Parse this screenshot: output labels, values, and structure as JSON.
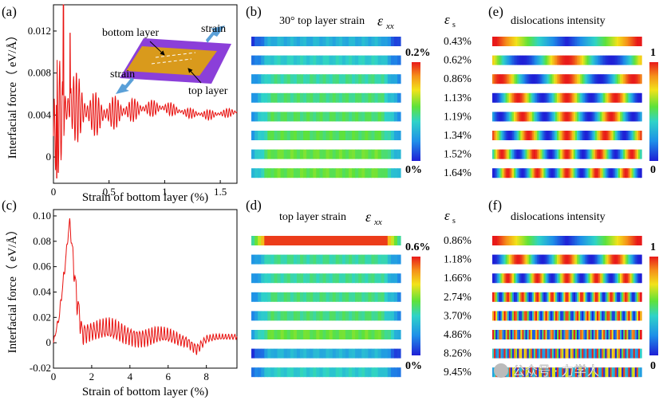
{
  "colors": {
    "curve": "#e8110f",
    "substrate": "#8b3fd9",
    "top_layer": "#d99a1c",
    "arrow": "#5aa0d8"
  },
  "panels": {
    "a": {
      "label": "(a)"
    },
    "b": {
      "label": "(b)"
    },
    "c": {
      "label": "(c)"
    },
    "d": {
      "label": "(d)"
    },
    "e": {
      "label": "(e)"
    },
    "f": {
      "label": "(f)"
    }
  },
  "inset": {
    "bottom_layer": "bottom layer",
    "top_layer": "top layer",
    "strain_right": "strain",
    "strain_left": "strain"
  },
  "chart_data": [
    {
      "id": "a",
      "type": "line",
      "color": "#e8110f",
      "xlabel": "Strain of bottom layer (%)",
      "ylabel": "Interfacial force（ eV/Å）",
      "xlim": [
        0,
        1.65
      ],
      "ylim": [
        -0.0025,
        0.0145
      ],
      "xticks": [
        0,
        0.5,
        1,
        1.5
      ],
      "xtick_labels": [
        "0",
        "0.5",
        "1",
        "1.5"
      ],
      "yticks": [
        0,
        0.004,
        0.008,
        0.012
      ],
      "ytick_labels": [
        "0",
        "0.004",
        "0.008",
        "0.012"
      ],
      "envelope": {
        "x": [
          0,
          0.03,
          0.08,
          0.15,
          0.25,
          0.4,
          0.6,
          0.8,
          1.0,
          1.2,
          1.4,
          1.65
        ],
        "mean": [
          0.002,
          0.004,
          0.004,
          0.005,
          0.0045,
          0.004,
          0.0043,
          0.0046,
          0.0047,
          0.0042,
          0.004,
          0.0043
        ],
        "amplitude": [
          0.004,
          0.006,
          0.005,
          0.004,
          0.003,
          0.002,
          0.0015,
          0.0009,
          0.0007,
          0.0005,
          0.0005,
          0.0004
        ]
      },
      "spikes": [
        {
          "x": 0.09,
          "y": 0.0145
        },
        {
          "x": 0.15,
          "y": 0.0118
        },
        {
          "x": 0.03,
          "y": -0.002
        }
      ]
    },
    {
      "id": "c",
      "type": "line",
      "color": "#e8110f",
      "xlabel": "Strain of bottom layer (%)",
      "ylabel": "Interfacial force（ eV/Å）",
      "xlim": [
        0,
        9.6
      ],
      "ylim": [
        -0.02,
        0.105
      ],
      "xticks": [
        0,
        2,
        4,
        6,
        8
      ],
      "xtick_labels": [
        "0",
        "2",
        "4",
        "6",
        "8"
      ],
      "yticks": [
        -0.02,
        0,
        0.02,
        0.04,
        0.06,
        0.08,
        0.1
      ],
      "ytick_labels": [
        "-0.02",
        "0",
        "0.02",
        "0.04",
        "0.06",
        "0.08",
        "0.10"
      ],
      "envelope": {
        "x": [
          0,
          0.3,
          0.6,
          0.85,
          0.95,
          1.2,
          1.5,
          2.0,
          3.0,
          4.0,
          5.0,
          6.0,
          7.0,
          7.5,
          8.0,
          9.0,
          9.6
        ],
        "mean": [
          0,
          0.02,
          0.06,
          0.097,
          0.08,
          0.04,
          0.01,
          0.01,
          0.008,
          0.007,
          0.005,
          0.004,
          0.002,
          -0.004,
          0.003,
          0.004,
          0.005
        ],
        "amplitude": [
          0.002,
          0.004,
          0.006,
          0.002,
          0.01,
          0.015,
          0.012,
          0.01,
          0.012,
          0.01,
          0.01,
          0.008,
          0.006,
          0.006,
          0.004,
          0.003,
          0.003
        ]
      }
    }
  ],
  "strain_b": {
    "title": "30° top layer strain",
    "symbol": "ε",
    "symbol_sub": "xx",
    "cbar_max": "0.2%",
    "cbar_min": "0%",
    "es_symbol": "ε",
    "es_sub": "s",
    "strains": [
      "0.43%",
      "0.62%",
      "0.86%",
      "1.13%",
      "1.19%",
      "1.34%",
      "1.52%",
      "1.64%"
    ],
    "levels": [
      0.3,
      0.38,
      0.45,
      0.48,
      0.5,
      0.52,
      0.55,
      0.55
    ]
  },
  "disl_e": {
    "title": "dislocations intensity",
    "cbar_max": "1",
    "cbar_min": "0",
    "wavelengths": [
      1.0,
      0.6,
      0.45,
      0.33,
      0.3,
      0.26,
      0.22,
      0.2
    ]
  },
  "strain_d": {
    "title": "top layer strain",
    "symbol": "ε",
    "symbol_sub": "xx",
    "cbar_max": "0.6%",
    "cbar_min": "0%",
    "es_symbol": "ε",
    "es_sub": "s",
    "strains": [
      "0.86%",
      "1.18%",
      "1.66%",
      "2.74%",
      "3.70%",
      "4.86%",
      "8.26%",
      "9.45%"
    ],
    "levels": [
      0.95,
      0.45,
      0.45,
      0.47,
      0.48,
      0.55,
      0.3,
      0.38
    ]
  },
  "disl_f": {
    "title": "dislocations intensity",
    "cbar_max": "1",
    "cbar_min": "0",
    "wavelengths": [
      1.0,
      0.33,
      0.2,
      0.1,
      0.07,
      0.05,
      0.035,
      0.03
    ]
  },
  "watermark": "公众号 · 力学人"
}
